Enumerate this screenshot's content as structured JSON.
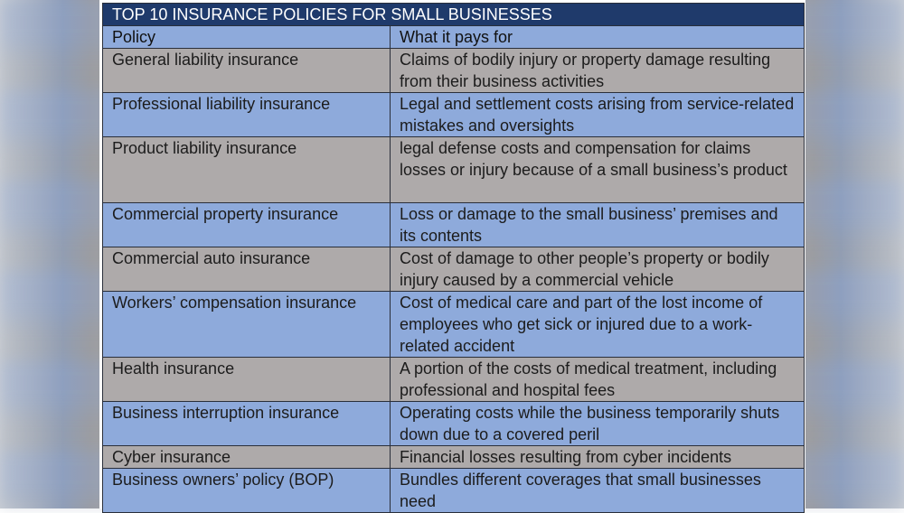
{
  "table": {
    "title": "TOP 10 INSURANCE POLICIES FOR SMALL BUSINESSES",
    "headers": [
      "Policy",
      "What it pays for"
    ],
    "colors": {
      "title_bg": "#1f3a6b",
      "header_bg": "#8eaadb",
      "row_gray": "#aeaaaa",
      "row_blue": "#8eaadb",
      "border": "#2a2f3a"
    },
    "rows": [
      {
        "policy": "General liability insurance",
        "pays_for": "Claims of bodily injury or property damage resulting from their business activities"
      },
      {
        "policy": "Professional liability insurance",
        "pays_for": "Legal and settlement costs arising from service-related mistakes and oversights"
      },
      {
        "policy": "Product liability insurance",
        "pays_for": "legal defense costs and compensation for claims losses or injury because of a small business’s product"
      },
      {
        "policy": "Commercial property insurance",
        "pays_for": "Loss or damage to the small business’ premises and its contents"
      },
      {
        "policy": "Commercial auto insurance",
        "pays_for": "Cost of damage to other people’s property or bodily injury caused by a commercial vehicle"
      },
      {
        "policy": "Workers’ compensation insurance",
        "pays_for": "Cost of medical care and part of the lost income of employees who get sick or injured due to a work-related accident"
      },
      {
        "policy": "Health insurance",
        "pays_for": "A portion of the costs of medical treatment, including professional and hospital fees"
      },
      {
        "policy": "Business interruption insurance",
        "pays_for": "Operating costs while the business temporarily shuts down due to a covered peril"
      },
      {
        "policy": "Cyber insurance",
        "pays_for": "Financial losses resulting from cyber incidents"
      },
      {
        "policy": "Business owners’ policy (BOP)",
        "pays_for": "Bundles different coverages that small businesses need"
      }
    ]
  }
}
